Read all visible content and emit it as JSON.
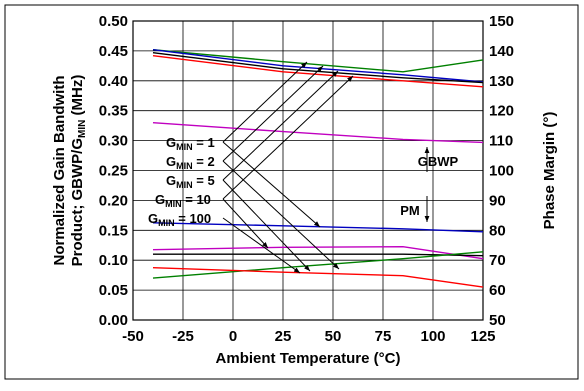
{
  "chart_data": {
    "type": "line",
    "xlabel": "Ambient Temperature (°C)",
    "ylabel_left_line1": "Normalized Gain Bandwith",
    "ylabel_left_line2_pre": "Product; GBWP/G",
    "ylabel_left_line2_sub": "MIN",
    "ylabel_left_line2_post": " (MHz)",
    "ylabel_right": "Phase Margin (°)",
    "xlim": [
      -50,
      125
    ],
    "ylim_left": [
      0,
      0.5
    ],
    "ylim_right": [
      50,
      150
    ],
    "x_ticks": [
      "-50",
      "-25",
      "0",
      "25",
      "50",
      "75",
      "100",
      "125"
    ],
    "y_left_ticks": [
      "0.00",
      "0.05",
      "0.10",
      "0.15",
      "0.20",
      "0.25",
      "0.30",
      "0.35",
      "0.40",
      "0.45",
      "0.50"
    ],
    "y_right_ticks": [
      "50",
      "60",
      "70",
      "80",
      "90",
      "100",
      "110",
      "120",
      "130",
      "140",
      "150"
    ],
    "grid": true,
    "series": [
      {
        "color": "#008000",
        "axis": "left",
        "x": [
          -40,
          25,
          85,
          125
        ],
        "y": [
          0.452,
          0.432,
          0.415,
          0.435
        ]
      },
      {
        "color": "#0000c0",
        "axis": "left",
        "x": [
          -40,
          25,
          85,
          125
        ],
        "y": [
          0.452,
          0.425,
          0.41,
          0.398
        ]
      },
      {
        "color": "#ff0000",
        "axis": "left",
        "x": [
          -40,
          25,
          85,
          125
        ],
        "y": [
          0.442,
          0.415,
          0.4,
          0.39
        ]
      },
      {
        "color": "#000000",
        "axis": "left",
        "x": [
          -40,
          25,
          85,
          125
        ],
        "y": [
          0.447,
          0.42,
          0.405,
          0.397
        ]
      },
      {
        "color": "#c000c0",
        "axis": "left",
        "x": [
          -40,
          25,
          85,
          125
        ],
        "y": [
          0.33,
          0.315,
          0.302,
          0.297
        ]
      },
      {
        "color": "#0000c0",
        "axis": "right",
        "x": [
          -40,
          25,
          85,
          125
        ],
        "y": [
          82.5,
          81.5,
          80.5,
          79.5
        ]
      },
      {
        "color": "#c000c0",
        "axis": "right",
        "x": [
          -40,
          25,
          85,
          125
        ],
        "y": [
          73.5,
          74.3,
          74.5,
          70.5
        ]
      },
      {
        "color": "#000000",
        "axis": "right",
        "x": [
          -40,
          25,
          85,
          125
        ],
        "y": [
          72,
          72,
          72,
          71.5
        ]
      },
      {
        "color": "#008000",
        "axis": "right",
        "x": [
          -40,
          25,
          85,
          125
        ],
        "y": [
          64,
          67.5,
          70.5,
          72.8
        ]
      },
      {
        "color": "#ff0000",
        "axis": "right",
        "x": [
          -40,
          25,
          85,
          125
        ],
        "y": [
          67.5,
          66,
          64.8,
          61
        ]
      }
    ],
    "annotations": {
      "gmin_prefix": "G",
      "gmin_sub": "MIN",
      "gmin_labels": [
        "= 1",
        "= 2",
        "= 5",
        "= 10",
        "= 100"
      ],
      "gbwp": "GBWP",
      "pm": "PM"
    }
  }
}
